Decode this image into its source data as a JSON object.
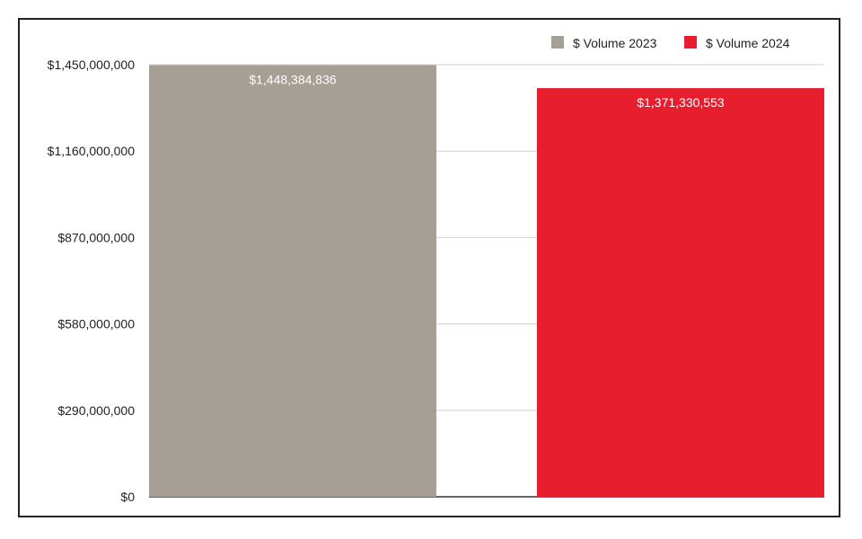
{
  "chart_data": {
    "type": "bar",
    "title": "",
    "xlabel": "",
    "ylabel": "",
    "ylim": [
      0,
      1450000000
    ],
    "y_ticks": [
      0,
      290000000,
      580000000,
      870000000,
      1160000000,
      1450000000
    ],
    "y_tick_labels": [
      "$0",
      "$290,000,000",
      "$580,000,000",
      "$870,000,000",
      "$1,160,000,000",
      "$1,450,000,000"
    ],
    "grid": true,
    "legend_position": "top-right",
    "series": [
      {
        "name": "$ Volume 2023",
        "value": 1448384836,
        "label": "$1,448,384,836",
        "color": "#a69f96"
      },
      {
        "name": "$ Volume 2024",
        "value": 1371330553,
        "label": "$1,371,330,553",
        "color": "#e61e2d"
      }
    ]
  }
}
